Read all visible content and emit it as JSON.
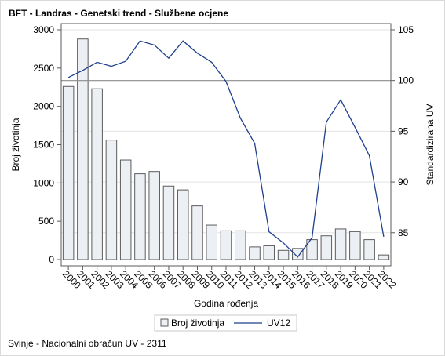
{
  "title": "BFT - Landras - Genetski trend - Službene ocjene",
  "footnote": "Svinje - Nacionalni obračun UV - 2311",
  "chart_data": {
    "type": "bar+line",
    "title": "BFT - Landras - Genetski trend - Službene ocjene",
    "xlabel": "Godina rođenja",
    "ylabel": "Broj životinja",
    "y2label": "Standardizirana UV",
    "categories": [
      "2000",
      "2001",
      "2002",
      "2003",
      "2004",
      "2005",
      "2006",
      "2007",
      "2008",
      "2009",
      "2010",
      "2011",
      "2012",
      "2013",
      "2014",
      "2015",
      "2016",
      "2017",
      "2018",
      "2019",
      "2020",
      "2021",
      "2022"
    ],
    "series": [
      {
        "name": "Broj životinja",
        "type": "bar",
        "axis": "left",
        "values": [
          2260,
          2880,
          2230,
          1560,
          1300,
          1120,
          1150,
          960,
          910,
          700,
          450,
          375,
          375,
          165,
          180,
          120,
          145,
          260,
          310,
          400,
          365,
          260,
          60
        ]
      },
      {
        "name": "UV12",
        "type": "line",
        "axis": "right",
        "values": [
          100.3,
          101.0,
          101.8,
          101.4,
          101.9,
          103.9,
          103.5,
          102.2,
          103.9,
          102.7,
          101.8,
          99.9,
          96.3,
          93.8,
          85.1,
          84.0,
          82.6,
          84.5,
          95.9,
          98.1,
          95.4,
          92.6,
          84.6
        ]
      }
    ],
    "ylim": [
      0,
      3000
    ],
    "yticks": [
      0,
      500,
      1000,
      1500,
      2000,
      2500,
      3000
    ],
    "y2lim": [
      82.2,
      105
    ],
    "y2ticks": [
      85,
      90,
      95,
      100,
      105
    ],
    "reference_line_y2": 100,
    "legend_position": "bottom-center",
    "colors": {
      "bar_fill": "#eceff4",
      "bar_stroke": "#5b5b5b",
      "line": "#1f3f8f",
      "grid": "#e3e3e3",
      "refline": "#8c8c8c"
    }
  }
}
